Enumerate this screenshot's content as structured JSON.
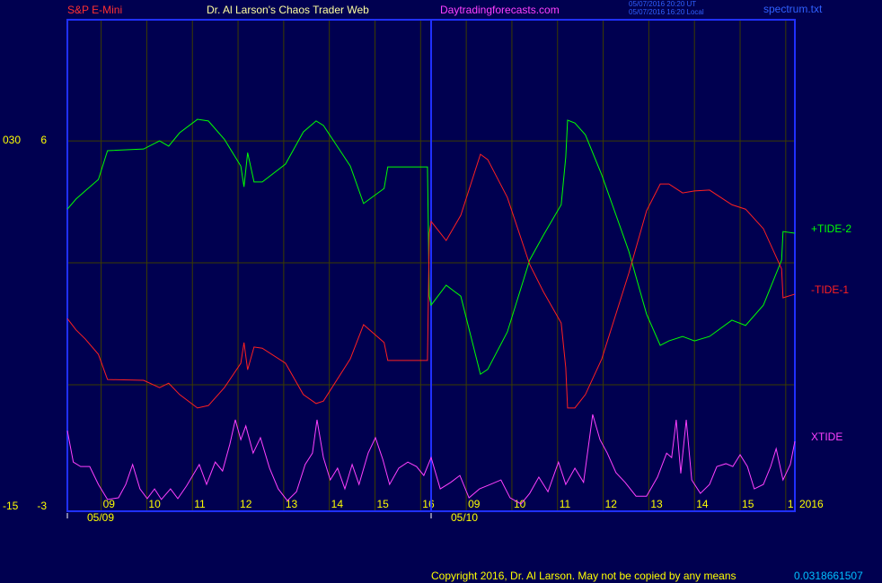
{
  "chart_data": {
    "type": "line",
    "instrument": "S&P E-Mini",
    "title": "Dr. Al Larson's Chaos Trader Web",
    "website": "Daytradingforecasts.com",
    "timestamps": [
      "05/07/2016 20:20 UT",
      "05/07/2016 16:20 Local"
    ],
    "file": "spectrum.txt",
    "year": "2016",
    "footer": "Copyright 2016, Dr. Al Larson. May not be copied by any means",
    "footer_code": "0.0318661507",
    "xlim": [
      0.26,
      16.2
    ],
    "ylim": [
      -3.11,
      8.98
    ],
    "yticks": [
      6,
      -3
    ],
    "ygrid": [
      6,
      3,
      0
    ],
    "y2lim": [
      -15.55,
      44.9
    ],
    "y2ticks": [
      {
        "value": 30,
        "label": "030"
      },
      -15
    ],
    "xticks": [
      {
        "value": 1,
        "label": "09"
      },
      {
        "value": 2,
        "label": "10"
      },
      {
        "value": 3,
        "label": "11"
      },
      {
        "value": 4,
        "label": "12"
      },
      {
        "value": 5,
        "label": "13"
      },
      {
        "value": 6,
        "label": "14"
      },
      {
        "value": 7,
        "label": "15"
      },
      {
        "value": 8,
        "label": "16"
      },
      {
        "value": 9,
        "label": "09"
      },
      {
        "value": 10,
        "label": "10"
      },
      {
        "value": 11,
        "label": "11"
      },
      {
        "value": 12,
        "label": "12"
      },
      {
        "value": 13,
        "label": "13"
      },
      {
        "value": 14,
        "label": "14"
      },
      {
        "value": 15,
        "label": "15"
      },
      {
        "value": 16,
        "label": "1"
      }
    ],
    "dates": [
      {
        "value": 0.26,
        "label": "05/09"
      },
      {
        "value": 8.23,
        "label": "05/10"
      }
    ],
    "grid": true,
    "series": [
      {
        "name": "+TIDE-2",
        "color": "#00ff00",
        "x": [
          0.26,
          0.45,
          0.65,
          0.94,
          1.14,
          1.93,
          2.28,
          2.48,
          2.72,
          3.11,
          3.35,
          3.7,
          4.06,
          4.13,
          4.21,
          4.35,
          4.53,
          5.04,
          5.43,
          5.71,
          5.87,
          6.46,
          6.75,
          7.2,
          7.28,
          8.15,
          8.19,
          8.23,
          8.56,
          8.88,
          9.31,
          9.47,
          9.9,
          10.39,
          10.69,
          11.08,
          11.18,
          11.22,
          11.38,
          11.61,
          11.97,
          12.56,
          12.95,
          13.25,
          13.44,
          13.74,
          14.0,
          14.33,
          14.82,
          15.12,
          15.51,
          15.91,
          15.94,
          16.2
        ],
        "values": [
          4.32,
          4.57,
          4.77,
          5.05,
          5.76,
          5.8,
          6.0,
          5.87,
          6.2,
          6.53,
          6.49,
          6.04,
          5.38,
          4.87,
          5.71,
          4.99,
          4.99,
          5.43,
          6.22,
          6.49,
          6.38,
          5.38,
          4.46,
          4.83,
          5.36,
          5.36,
          2.18,
          1.96,
          2.45,
          2.18,
          0.26,
          0.38,
          1.3,
          3.07,
          3.68,
          4.43,
          5.6,
          6.51,
          6.44,
          6.15,
          5.16,
          3.29,
          1.74,
          0.97,
          1.08,
          1.19,
          1.08,
          1.19,
          1.59,
          1.46,
          1.96,
          3.07,
          3.77,
          3.73
        ]
      },
      {
        "name": "-TIDE-1",
        "color": "#ff2020",
        "x": [
          0.26,
          0.45,
          0.65,
          0.94,
          1.14,
          1.93,
          2.28,
          2.48,
          2.72,
          3.11,
          3.35,
          3.7,
          4.06,
          4.13,
          4.21,
          4.35,
          4.53,
          5.04,
          5.43,
          5.71,
          5.87,
          6.46,
          6.75,
          7.2,
          7.28,
          8.15,
          8.19,
          8.23,
          8.56,
          8.88,
          9.31,
          9.47,
          9.9,
          10.39,
          10.69,
          11.08,
          11.18,
          11.22,
          11.38,
          11.61,
          11.97,
          12.56,
          12.95,
          13.25,
          13.44,
          13.74,
          14.0,
          14.33,
          14.82,
          15.12,
          15.51,
          15.91,
          15.94,
          16.2
        ],
        "values": [
          1.63,
          1.35,
          1.13,
          0.75,
          0.13,
          0.11,
          -0.07,
          0.04,
          -0.24,
          -0.57,
          -0.51,
          -0.07,
          0.53,
          1.04,
          0.37,
          0.93,
          0.9,
          0.53,
          -0.24,
          -0.46,
          -0.4,
          0.64,
          1.48,
          1.04,
          0.6,
          0.6,
          3.73,
          4.02,
          3.55,
          4.17,
          5.67,
          5.54,
          4.61,
          2.96,
          2.29,
          1.52,
          0.42,
          -0.57,
          -0.57,
          -0.24,
          0.64,
          2.74,
          4.28,
          4.94,
          4.94,
          4.72,
          4.77,
          4.79,
          4.43,
          4.32,
          3.84,
          2.85,
          2.14,
          2.23
        ]
      },
      {
        "name": "XTIDE",
        "color": "#ff40ff",
        "x": [
          0.26,
          0.39,
          0.55,
          0.75,
          0.94,
          1.14,
          1.38,
          1.54,
          1.69,
          1.85,
          2.01,
          2.17,
          2.32,
          2.52,
          2.68,
          2.87,
          3.15,
          3.31,
          3.5,
          3.66,
          3.82,
          3.94,
          4.06,
          4.17,
          4.33,
          4.49,
          4.69,
          4.88,
          5.08,
          5.28,
          5.47,
          5.63,
          5.73,
          5.87,
          6.02,
          6.18,
          6.34,
          6.5,
          6.65,
          6.85,
          7.01,
          7.17,
          7.32,
          7.52,
          7.72,
          7.91,
          8.07,
          8.23,
          8.43,
          8.66,
          8.86,
          9.06,
          9.29,
          9.53,
          9.76,
          9.96,
          10.2,
          10.39,
          10.59,
          10.79,
          11.02,
          11.18,
          11.38,
          11.57,
          11.77,
          11.93,
          12.09,
          12.28,
          12.48,
          12.72,
          12.95,
          13.19,
          13.39,
          13.5,
          13.6,
          13.7,
          13.82,
          13.94,
          14.13,
          14.33,
          14.49,
          14.69,
          14.84,
          15.0,
          15.16,
          15.31,
          15.51,
          15.67,
          15.79,
          15.94,
          16.1,
          16.2
        ],
        "values": [
          -1.13,
          -1.9,
          -2.01,
          -2.01,
          -2.45,
          -2.82,
          -2.78,
          -2.45,
          -1.96,
          -2.56,
          -2.8,
          -2.56,
          -2.82,
          -2.56,
          -2.8,
          -2.49,
          -1.96,
          -2.45,
          -1.9,
          -2.12,
          -1.46,
          -0.86,
          -1.35,
          -1.01,
          -1.68,
          -1.3,
          -2.05,
          -2.56,
          -2.85,
          -2.63,
          -1.96,
          -1.68,
          -0.86,
          -1.79,
          -2.34,
          -2.05,
          -2.56,
          -1.96,
          -2.45,
          -1.68,
          -1.3,
          -1.83,
          -2.45,
          -2.05,
          -1.9,
          -2.01,
          -2.23,
          -1.79,
          -2.56,
          -2.4,
          -2.23,
          -2.78,
          -2.56,
          -2.45,
          -2.34,
          -2.78,
          -2.93,
          -2.67,
          -2.27,
          -2.63,
          -1.9,
          -2.45,
          -2.05,
          -2.4,
          -0.73,
          -1.35,
          -1.68,
          -2.16,
          -2.4,
          -2.74,
          -2.74,
          -2.27,
          -1.68,
          -1.79,
          -0.86,
          -2.18,
          -0.86,
          -2.34,
          -2.67,
          -2.45,
          -2.01,
          -1.94,
          -2.01,
          -1.72,
          -2.01,
          -2.56,
          -2.45,
          -2.01,
          -1.57,
          -2.34,
          -1.96,
          -1.39
        ]
      }
    ]
  }
}
